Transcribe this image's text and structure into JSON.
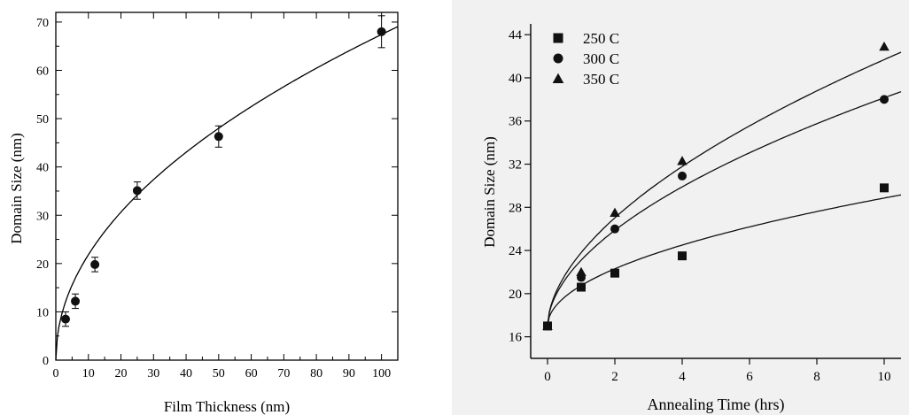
{
  "chart_data": [
    {
      "type": "scatter",
      "title": "",
      "xlabel": "Film Thickness (nm)",
      "ylabel": "Domain Size (nm)",
      "xlim": [
        0,
        105
      ],
      "ylim": [
        0,
        72
      ],
      "xticks": [
        0,
        10,
        20,
        30,
        40,
        50,
        60,
        70,
        80,
        90,
        100
      ],
      "yticks": [
        0,
        10,
        20,
        30,
        40,
        50,
        60,
        70
      ],
      "grid": false,
      "legend": "none",
      "marker_color": "#111111",
      "series": [
        {
          "marker": "circle",
          "points": [
            {
              "x": 3,
              "y": 8.5,
              "err": 1.5
            },
            {
              "x": 6,
              "y": 12.2,
              "err": 1.5
            },
            {
              "x": 12,
              "y": 19.8,
              "err": 1.5
            },
            {
              "x": 25,
              "y": 35.1,
              "err": 1.8
            },
            {
              "x": 50,
              "y": 46.3,
              "err": 2.2
            },
            {
              "x": 100,
              "y": 68.0,
              "err": 3.3
            }
          ]
        }
      ],
      "fit": {
        "type": "power",
        "a": 7.06,
        "b": 0.49
      }
    },
    {
      "type": "scatter",
      "title": "",
      "xlabel": "Annealing Time (hrs)",
      "ylabel": "Domain Size (nm)",
      "xlim": [
        -0.5,
        10.5
      ],
      "ylim": [
        14,
        45
      ],
      "xticks": [
        0,
        2,
        4,
        6,
        8,
        10
      ],
      "yticks": [
        16,
        20,
        24,
        28,
        32,
        36,
        40,
        44
      ],
      "grid": false,
      "legend": "top-left",
      "marker_color": "#111111",
      "series": [
        {
          "name": "250 C",
          "marker": "square",
          "points": [
            {
              "x": 0,
              "y": 17.0
            },
            {
              "x": 1,
              "y": 20.6
            },
            {
              "x": 2,
              "y": 21.9
            },
            {
              "x": 4,
              "y": 23.5
            },
            {
              "x": 10,
              "y": 29.8
            }
          ],
          "fit": {
            "y0": 17.0,
            "k": 3.75,
            "n": 0.5
          }
        },
        {
          "name": "300 C",
          "marker": "circle",
          "points": [
            {
              "x": 0,
              "y": 17.0
            },
            {
              "x": 1,
              "y": 21.5
            },
            {
              "x": 2,
              "y": 26.0
            },
            {
              "x": 4,
              "y": 30.9
            },
            {
              "x": 10,
              "y": 38.0
            }
          ],
          "fit": {
            "y0": 17.0,
            "k": 6.1,
            "n": 0.54
          }
        },
        {
          "name": "350 C",
          "marker": "triangle",
          "points": [
            {
              "x": 0,
              "y": 17.0
            },
            {
              "x": 1,
              "y": 22.0
            },
            {
              "x": 2,
              "y": 27.5
            },
            {
              "x": 4,
              "y": 32.3
            },
            {
              "x": 10,
              "y": 42.9
            }
          ],
          "fit": {
            "y0": 17.0,
            "k": 6.8,
            "n": 0.56
          }
        }
      ]
    }
  ]
}
